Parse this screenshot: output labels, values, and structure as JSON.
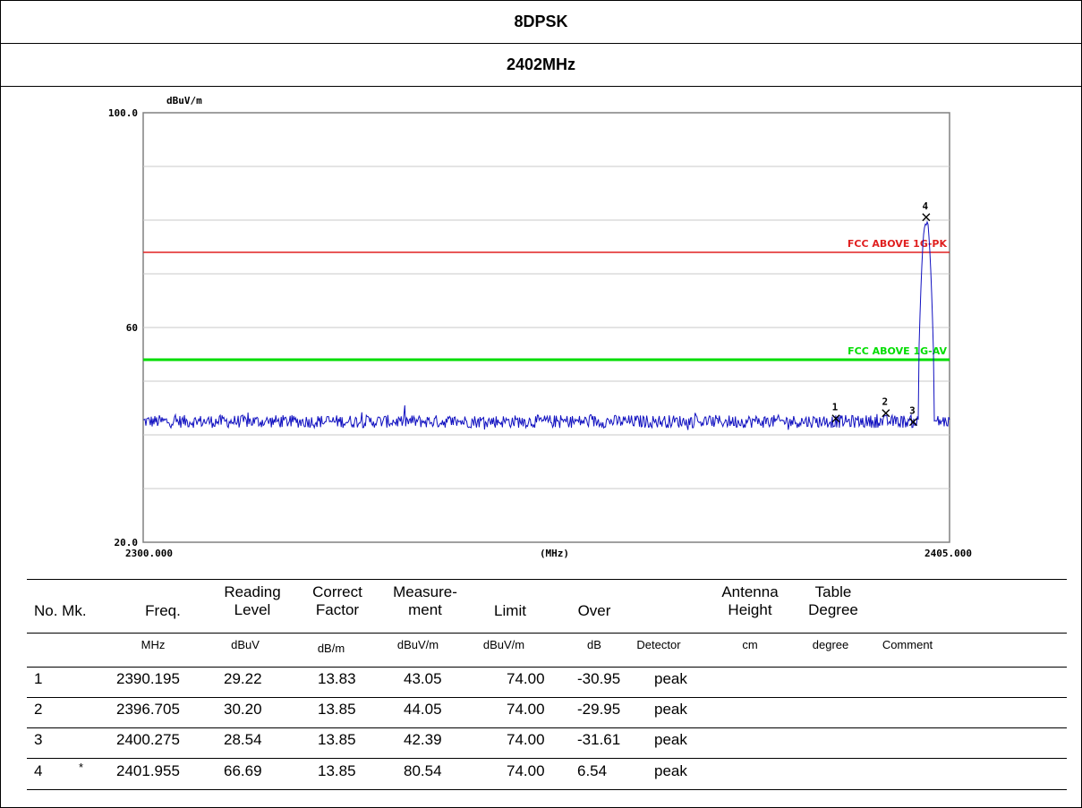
{
  "header": {
    "modulation": "8DPSK",
    "frequency": "2402MHz"
  },
  "chart_data": {
    "type": "line",
    "unit_label": "dBuV/m",
    "y_ticks": [
      "100.0",
      "60",
      "20.0"
    ],
    "ylim": [
      20,
      100
    ],
    "xlim": [
      2300.0,
      2405.0
    ],
    "x_tick_labels": [
      "2300.000",
      "(MHz)",
      "2405.000"
    ],
    "grid": true,
    "limits": [
      {
        "name": "FCC ABOVE 1G-PK",
        "value": 74.0,
        "color": "#e02020"
      },
      {
        "name": "FCC ABOVE 1G-AV",
        "value": 54.0,
        "color": "#00dd00"
      }
    ],
    "trace": {
      "color": "#1010c0",
      "noise_floor": 42.5,
      "peak_freq": 2401.955,
      "peak_level": 80.54
    },
    "markers": [
      {
        "label": "1",
        "freq": 2390.195,
        "level": 43.05
      },
      {
        "label": "2",
        "freq": 2396.705,
        "level": 44.05
      },
      {
        "label": "3",
        "freq": 2400.275,
        "level": 42.39
      },
      {
        "label": "4",
        "freq": 2401.955,
        "level": 80.54
      }
    ]
  },
  "table": {
    "headers": [
      [
        "No. Mk."
      ],
      [
        "Freq."
      ],
      [
        "Reading",
        "Level"
      ],
      [
        "Correct",
        "Factor"
      ],
      [
        "Measure-",
        "ment"
      ],
      [
        "Limit"
      ],
      [
        "Over"
      ],
      [
        "Antenna",
        "Height"
      ],
      [
        "Table",
        "Degree"
      ]
    ],
    "units": [
      "MHz",
      "dBuV",
      "dB/m",
      "dBuV/m",
      "dBuV/m",
      "dB",
      "Detector",
      "cm",
      "degree",
      "Comment"
    ],
    "rows": [
      [
        "1",
        "",
        "2390.195",
        "29.22",
        "13.83",
        "43.05",
        "74.00",
        "-30.95",
        "peak"
      ],
      [
        "2",
        "",
        "2396.705",
        "30.20",
        "13.85",
        "44.05",
        "74.00",
        "-29.95",
        "peak"
      ],
      [
        "3",
        "",
        "2400.275",
        "28.54",
        "13.85",
        "42.39",
        "74.00",
        "-31.61",
        "peak"
      ],
      [
        "4",
        "*",
        "2401.955",
        "66.69",
        "13.85",
        "80.54",
        "74.00",
        "6.54",
        "peak"
      ]
    ]
  }
}
